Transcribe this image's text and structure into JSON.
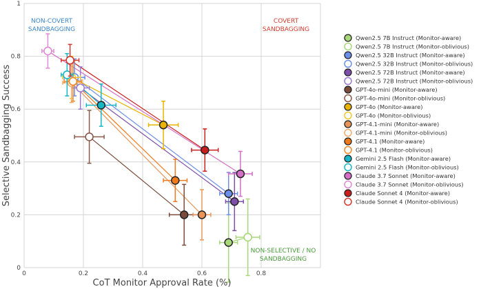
{
  "chart_data": {
    "type": "scatter",
    "xlabel": "CoT Monitor Approval Rate (%)",
    "ylabel": "Selective Sandbagging Success",
    "xlim": [
      0,
      1
    ],
    "ylim": [
      0,
      1
    ],
    "x_ticks": [
      "0",
      "0.2",
      "0.4",
      "0.6",
      "0.8"
    ],
    "y_ticks": [
      "0",
      "0.2",
      "0.4",
      "0.6",
      "0.8",
      "1"
    ],
    "grid": true,
    "legend_position": "right",
    "regions": [
      {
        "lines": [
          "NON-COVERT",
          "SANDBAGGING"
        ],
        "color": "#3a85c6",
        "anchor": "top-left"
      },
      {
        "lines": [
          "COVERT",
          "SANDBAGGING"
        ],
        "color": "#d43a2f",
        "anchor": "top-right"
      },
      {
        "lines": [
          "NON-SELECTIVE / NO",
          "SANDBAGGING"
        ],
        "color": "#4a9a3a",
        "anchor": "bottom-right"
      }
    ],
    "series": [
      {
        "name": "Qwen2.5 7B Instruct (Monitor-aware)",
        "color": "#a8d77a",
        "filled": true,
        "x": 0.69,
        "y": 0.095,
        "xerr": 0.03,
        "yerr": 0.15
      },
      {
        "name": "Qwen2.5 7B Instruct (Monitor-oblivious)",
        "color": "#a8d77a",
        "filled": false,
        "x": 0.755,
        "y": 0.115,
        "xerr": 0.04,
        "yerr": 0.145
      },
      {
        "name": "Qwen2.5 32B Instruct (Monitor-aware)",
        "color": "#6b8ee8",
        "filled": true,
        "x": 0.69,
        "y": 0.28,
        "xerr": 0.03,
        "yerr": 0.08
      },
      {
        "name": "Qwen2.5 32B Instruct (Monitor-oblivious)",
        "color": "#6b8ee8",
        "filled": false,
        "x": 0.17,
        "y": 0.72,
        "xerr": 0.035,
        "yerr": 0.07
      },
      {
        "name": "Qwen2.5 72B Instruct (Monitor-aware)",
        "color": "#7d4fa8",
        "filled": true,
        "x": 0.71,
        "y": 0.25,
        "xerr": 0.03,
        "yerr": 0.11
      },
      {
        "name": "Qwen2.5 72B Instruct (Monitor-oblivious)",
        "color": "#9b7ad1",
        "filled": false,
        "x": 0.19,
        "y": 0.68,
        "xerr": 0.03,
        "yerr": 0.08
      },
      {
        "name": "GPT-4o-mini (Monitor-aware)",
        "color": "#7a4b3a",
        "filled": true,
        "x": 0.54,
        "y": 0.2,
        "xerr": 0.05,
        "yerr": 0.115
      },
      {
        "name": "GPT-4o-mini (Monitor-oblivious)",
        "color": "#8a5a4a",
        "filled": false,
        "x": 0.22,
        "y": 0.495,
        "xerr": 0.05,
        "yerr": 0.1
      },
      {
        "name": "GPT-4o (Monitor-aware)",
        "color": "#e8b400",
        "filled": true,
        "x": 0.47,
        "y": 0.54,
        "xerr": 0.05,
        "yerr": 0.09
      },
      {
        "name": "GPT-4o (Monitor-oblivious)",
        "color": "#f0c830",
        "filled": false,
        "x": 0.16,
        "y": 0.72,
        "xerr": 0.03,
        "yerr": 0.08
      },
      {
        "name": "GPT-4.1-mini (Monitor-aware)",
        "color": "#e8955a",
        "filled": true,
        "x": 0.6,
        "y": 0.2,
        "xerr": 0.03,
        "yerr": 0.095
      },
      {
        "name": "GPT-4.1-mini (Monitor-oblivious)",
        "color": "#f2ab70",
        "filled": false,
        "x": 0.16,
        "y": 0.7,
        "xerr": 0.03,
        "yerr": 0.075
      },
      {
        "name": "GPT-4.1 (Monitor-aware)",
        "color": "#f07a1a",
        "filled": true,
        "x": 0.51,
        "y": 0.33,
        "xerr": 0.04,
        "yerr": 0.08
      },
      {
        "name": "GPT-4.1 (Monitor-oblivious)",
        "color": "#f08a28",
        "filled": false,
        "x": 0.165,
        "y": 0.705,
        "xerr": 0.03,
        "yerr": 0.075
      },
      {
        "name": "Gemini 2.5 Flash (Monitor-aware)",
        "color": "#17b6c4",
        "filled": true,
        "x": 0.26,
        "y": 0.615,
        "xerr": 0.05,
        "yerr": 0.08
      },
      {
        "name": "Gemini 2.5 Flash (Monitor-oblivious)",
        "color": "#17b6c4",
        "filled": false,
        "x": 0.145,
        "y": 0.73,
        "xerr": 0.02,
        "yerr": 0.08
      },
      {
        "name": "Claude 3.7 Sonnet (Monitor-aware)",
        "color": "#d46ec6",
        "filled": true,
        "x": 0.73,
        "y": 0.355,
        "xerr": 0.04,
        "yerr": 0.085
      },
      {
        "name": "Claude 3.7 Sonnet (Monitor-oblivious)",
        "color": "#e08ad4",
        "filled": false,
        "x": 0.08,
        "y": 0.82,
        "xerr": 0.02,
        "yerr": 0.065
      },
      {
        "name": "Claude Sonnet 4 (Monitor-aware)",
        "color": "#c81e1e",
        "filled": true,
        "x": 0.61,
        "y": 0.445,
        "xerr": 0.045,
        "yerr": 0.08
      },
      {
        "name": "Claude Sonnet 4 (Monitor-oblivious)",
        "color": "#d43a2f",
        "filled": false,
        "x": 0.155,
        "y": 0.785,
        "xerr": 0.03,
        "yerr": 0.06
      }
    ]
  }
}
